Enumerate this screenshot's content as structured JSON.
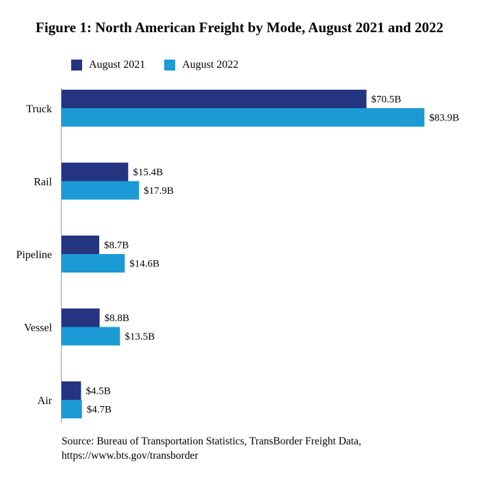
{
  "chart_data": {
    "type": "bar",
    "orientation": "horizontal",
    "title": "Figure 1: North American Freight by Mode, August 2021 and 2022",
    "categories": [
      "Truck",
      "Rail",
      "Pipeline",
      "Vessel",
      "Air"
    ],
    "series": [
      {
        "name": "August 2021",
        "color": "#253480",
        "values": [
          70.5,
          15.4,
          8.7,
          8.8,
          4.5
        ],
        "labels": [
          "$70.5B",
          "$15.4B",
          "$8.7B",
          "$8.8B",
          "$4.5B"
        ]
      },
      {
        "name": "August 2022",
        "color": "#1B9AD6",
        "values": [
          83.9,
          17.9,
          14.6,
          13.5,
          4.7
        ],
        "labels": [
          "$83.9B",
          "$17.9B",
          "$14.6B",
          "$13.5B",
          "$4.7B"
        ]
      }
    ],
    "xlim": [
      0,
      90
    ],
    "legend_position": "top-left",
    "grid": false,
    "source": [
      "Source: Bureau of Transportation Statistics, TransBorder Freight Data,",
      "https://www.bts.gov/transborder"
    ]
  }
}
